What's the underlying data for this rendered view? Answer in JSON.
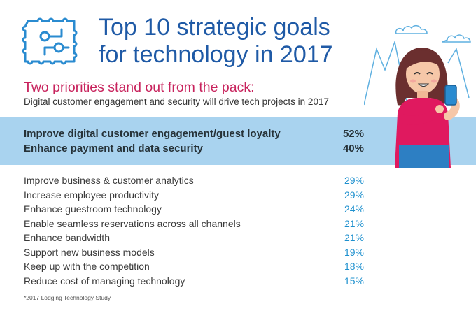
{
  "title_lines": [
    "Top 10 strategic goals",
    "for technology in 2017"
  ],
  "subtitle": "Two priorities stand out from the pack:",
  "subtitle2": "Digital customer engagement and security will drive tech projects in 2017",
  "footnote": "*2017 Lodging Technology Study",
  "icons": {
    "header": "circuit-chip-icon",
    "illustration": "woman-with-phone-illustration"
  },
  "colors": {
    "title": "#1f5aa6",
    "subtitle": "#c8235d",
    "band": "#a9d3ef",
    "percent": "#1e90ce"
  },
  "chart_data": {
    "type": "table",
    "title": "Top 10 strategic goals for technology in 2017",
    "highlighted": [
      {
        "label": "Improve digital customer engagement/guest loyalty",
        "value": "52%"
      },
      {
        "label": "Enhance payment and data security",
        "value": "40%"
      }
    ],
    "rows": [
      {
        "label": "Improve business & customer analytics",
        "value": "29%"
      },
      {
        "label": "Increase employee productivity",
        "value": "29%"
      },
      {
        "label": "Enhance guestroom technology",
        "value": "24%"
      },
      {
        "label": "Enable seamless reservations across all channels",
        "value": "21%"
      },
      {
        "label": "Enhance bandwidth",
        "value": "21%"
      },
      {
        "label": "Support new business models",
        "value": "19%"
      },
      {
        "label": "Keep up with the competition",
        "value": "18%"
      },
      {
        "label": "Reduce cost of managing technology",
        "value": "15%"
      }
    ]
  }
}
